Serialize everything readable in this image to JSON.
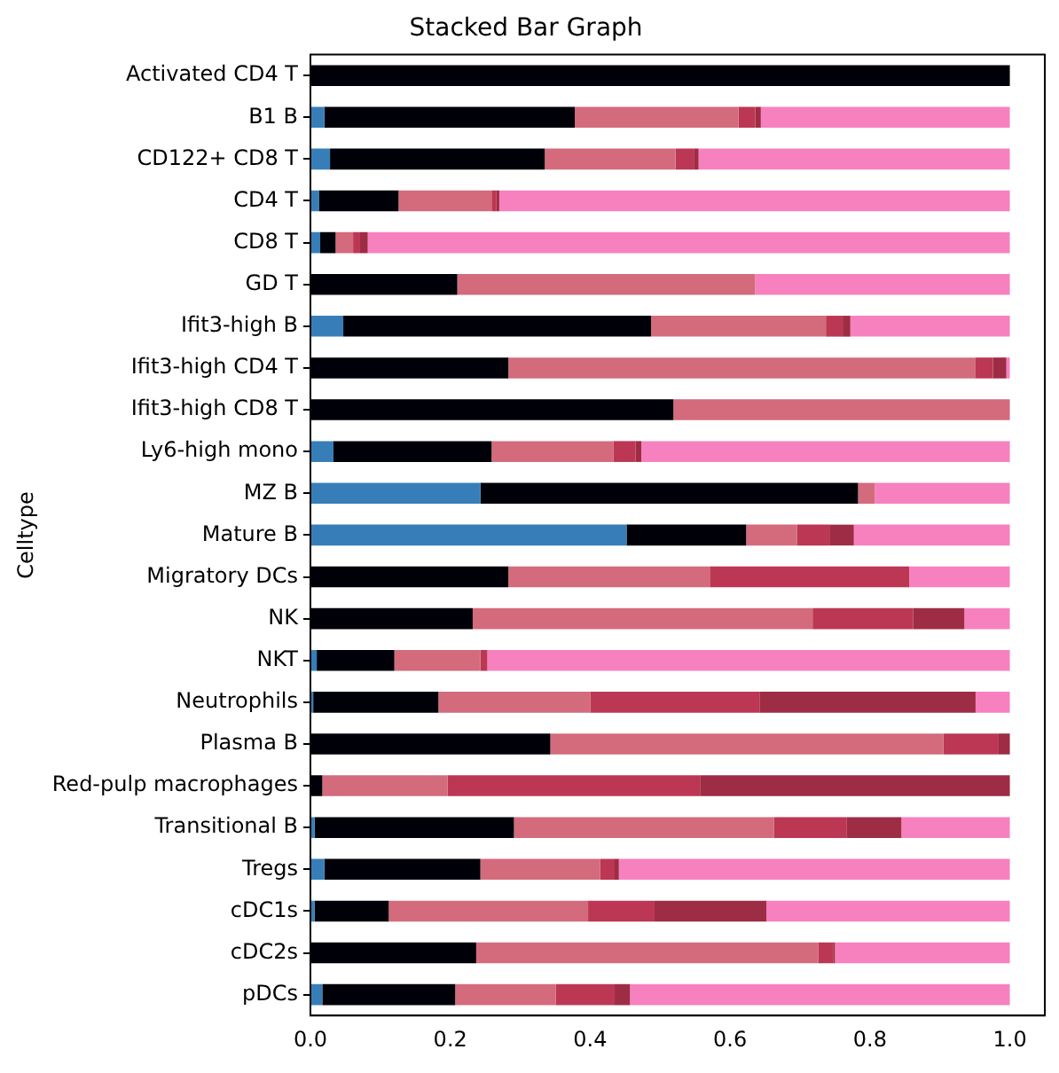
{
  "chart_data": {
    "type": "bar",
    "orientation": "horizontal",
    "stacked": true,
    "title": "Stacked Bar Graph",
    "ylabel": "Celltype",
    "categories": [
      "Activated CD4 T",
      "B1 B",
      "CD122+ CD8 T",
      "CD4 T",
      "CD8 T",
      "GD T",
      "Ifit3-high B",
      "Ifit3-high CD4 T",
      "Ifit3-high CD8 T",
      "Ly6-high mono",
      "MZ B",
      "Mature B",
      "Migratory DCs",
      "NK",
      "NKT",
      "Neutrophils",
      "Plasma B",
      "Red-pulp macrophages",
      "Transitional B",
      "Tregs",
      "cDC1s",
      "cDC2s",
      "pDCs"
    ],
    "series": [
      {
        "color": "#377eb8",
        "values": [
          0,
          0.02,
          0.028,
          0.012,
          0.014,
          0,
          0.047,
          0,
          0,
          0.033,
          0.243,
          0.452,
          0,
          0,
          0.009,
          0.004,
          0,
          0,
          0.006,
          0.02,
          0.006,
          0,
          0.017
        ]
      },
      {
        "color": "#000008",
        "values": [
          1,
          0.358,
          0.307,
          0.114,
          0.022,
          0.21,
          0.44,
          0.283,
          0.519,
          0.226,
          0.54,
          0.171,
          0.283,
          0.232,
          0.111,
          0.179,
          0.343,
          0.017,
          0.285,
          0.223,
          0.106,
          0.237,
          0.19
        ]
      },
      {
        "color": "#d36b7d",
        "values": [
          0,
          0.234,
          0.187,
          0.133,
          0.025,
          0.426,
          0.25,
          0.668,
          0.481,
          0.174,
          0.024,
          0.073,
          0.288,
          0.486,
          0.123,
          0.217,
          0.562,
          0.179,
          0.372,
          0.171,
          0.285,
          0.489,
          0.144
        ]
      },
      {
        "color": "#bc3754",
        "values": [
          0,
          0.024,
          0.027,
          0.007,
          0.01,
          0,
          0.024,
          0.025,
          0,
          0.032,
          0,
          0.046,
          0.285,
          0.144,
          0.01,
          0.242,
          0.079,
          0.361,
          0.104,
          0.021,
          0.095,
          0.022,
          0.084
        ]
      },
      {
        "color": "#9e2c44",
        "values": [
          0,
          0.008,
          0.006,
          0.004,
          0.011,
          0,
          0.011,
          0.019,
          0,
          0.008,
          0,
          0.035,
          0,
          0.073,
          0,
          0.309,
          0.016,
          0.443,
          0.078,
          0.006,
          0.16,
          0.002,
          0.022
        ]
      },
      {
        "color": "#f781bf",
        "values": [
          0,
          0.356,
          0.445,
          0.73,
          0.918,
          0.364,
          0.228,
          0.005,
          0,
          0.527,
          0.193,
          0.223,
          0.144,
          0.065,
          0.747,
          0.049,
          0,
          0,
          0.155,
          0.559,
          0.348,
          0.25,
          0.543
        ]
      }
    ],
    "xlim": [
      0,
      1.05
    ],
    "xticks": [
      {
        "value": 0,
        "label": "0.0"
      },
      {
        "value": 0.2,
        "label": "0.2"
      },
      {
        "value": 0.4,
        "label": "0.4"
      },
      {
        "value": 0.6,
        "label": "0.6"
      },
      {
        "value": 0.8,
        "label": "0.8"
      },
      {
        "value": 1,
        "label": "1.0"
      }
    ],
    "grid": false,
    "legend": false
  }
}
